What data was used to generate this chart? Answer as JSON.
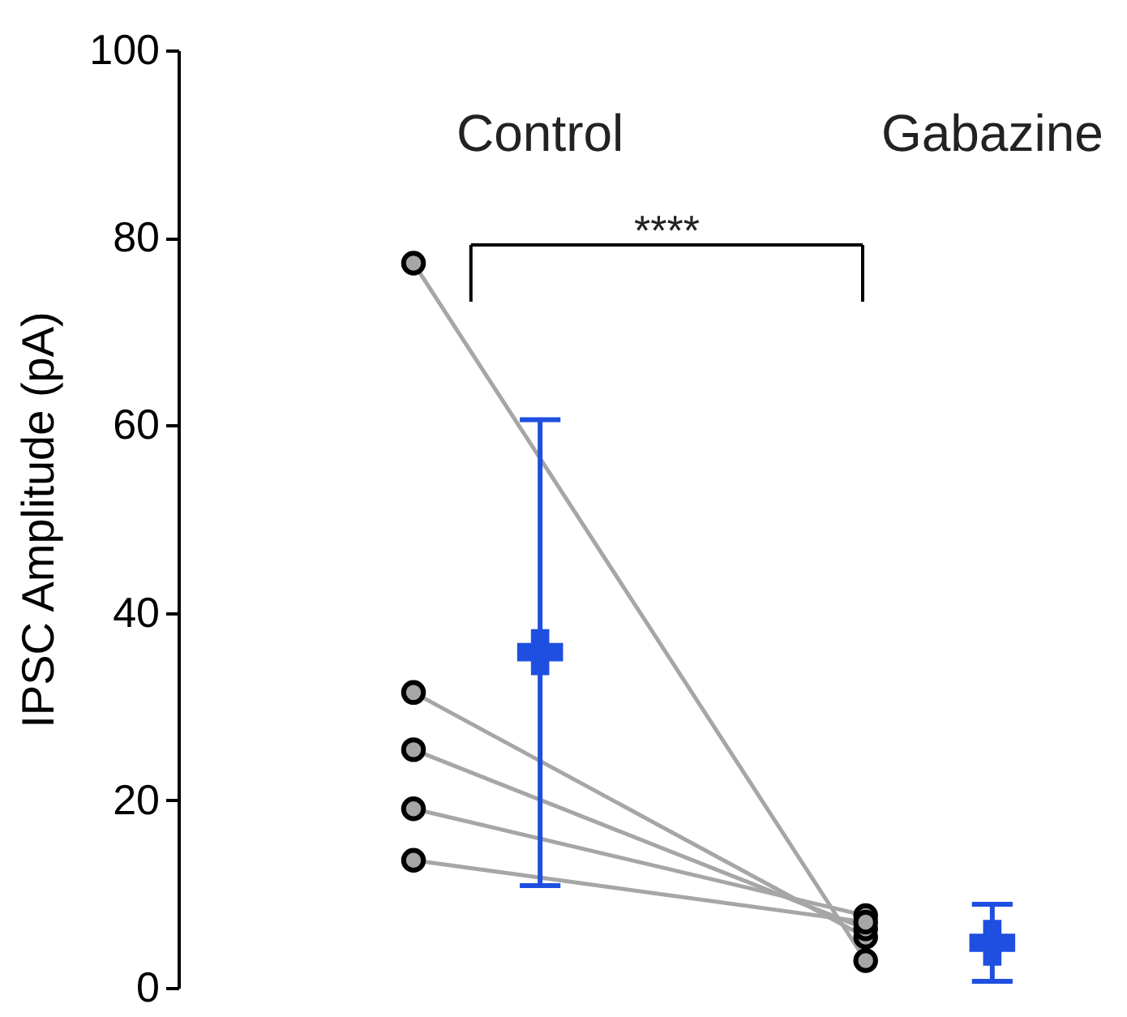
{
  "chart_data": {
    "type": "line",
    "categories": [
      "Control",
      "Gabazine"
    ],
    "ylabel": "IPSC Amplitude (pA)",
    "ylim": [
      0,
      100
    ],
    "yticks": [
      0,
      20,
      40,
      60,
      80,
      100
    ],
    "grid": false,
    "tick_labels": "y",
    "annotations": [
      "****"
    ],
    "series": [
      {
        "color": "#a6a6a6",
        "marker": "circle",
        "values": [
          77.3,
          2.9
        ]
      },
      {
        "color": "#a6a6a6",
        "marker": "circle",
        "values": [
          31.5,
          5.4
        ]
      },
      {
        "color": "#a6a6a6",
        "marker": "circle",
        "values": [
          25.4,
          6.3
        ]
      },
      {
        "color": "#a6a6a6",
        "marker": "circle",
        "values": [
          19.1,
          7.7
        ]
      },
      {
        "color": "#a6a6a6",
        "marker": "circle",
        "values": [
          13.6,
          7.0
        ]
      },
      {
        "type": "scatter",
        "color": "#1f4fe0",
        "marker": "cross",
        "values": [
          35.8,
          4.8
        ],
        "errors": [
          [
            10.9,
            60.6
          ],
          [
            0.7,
            8.9
          ]
        ]
      }
    ]
  }
}
